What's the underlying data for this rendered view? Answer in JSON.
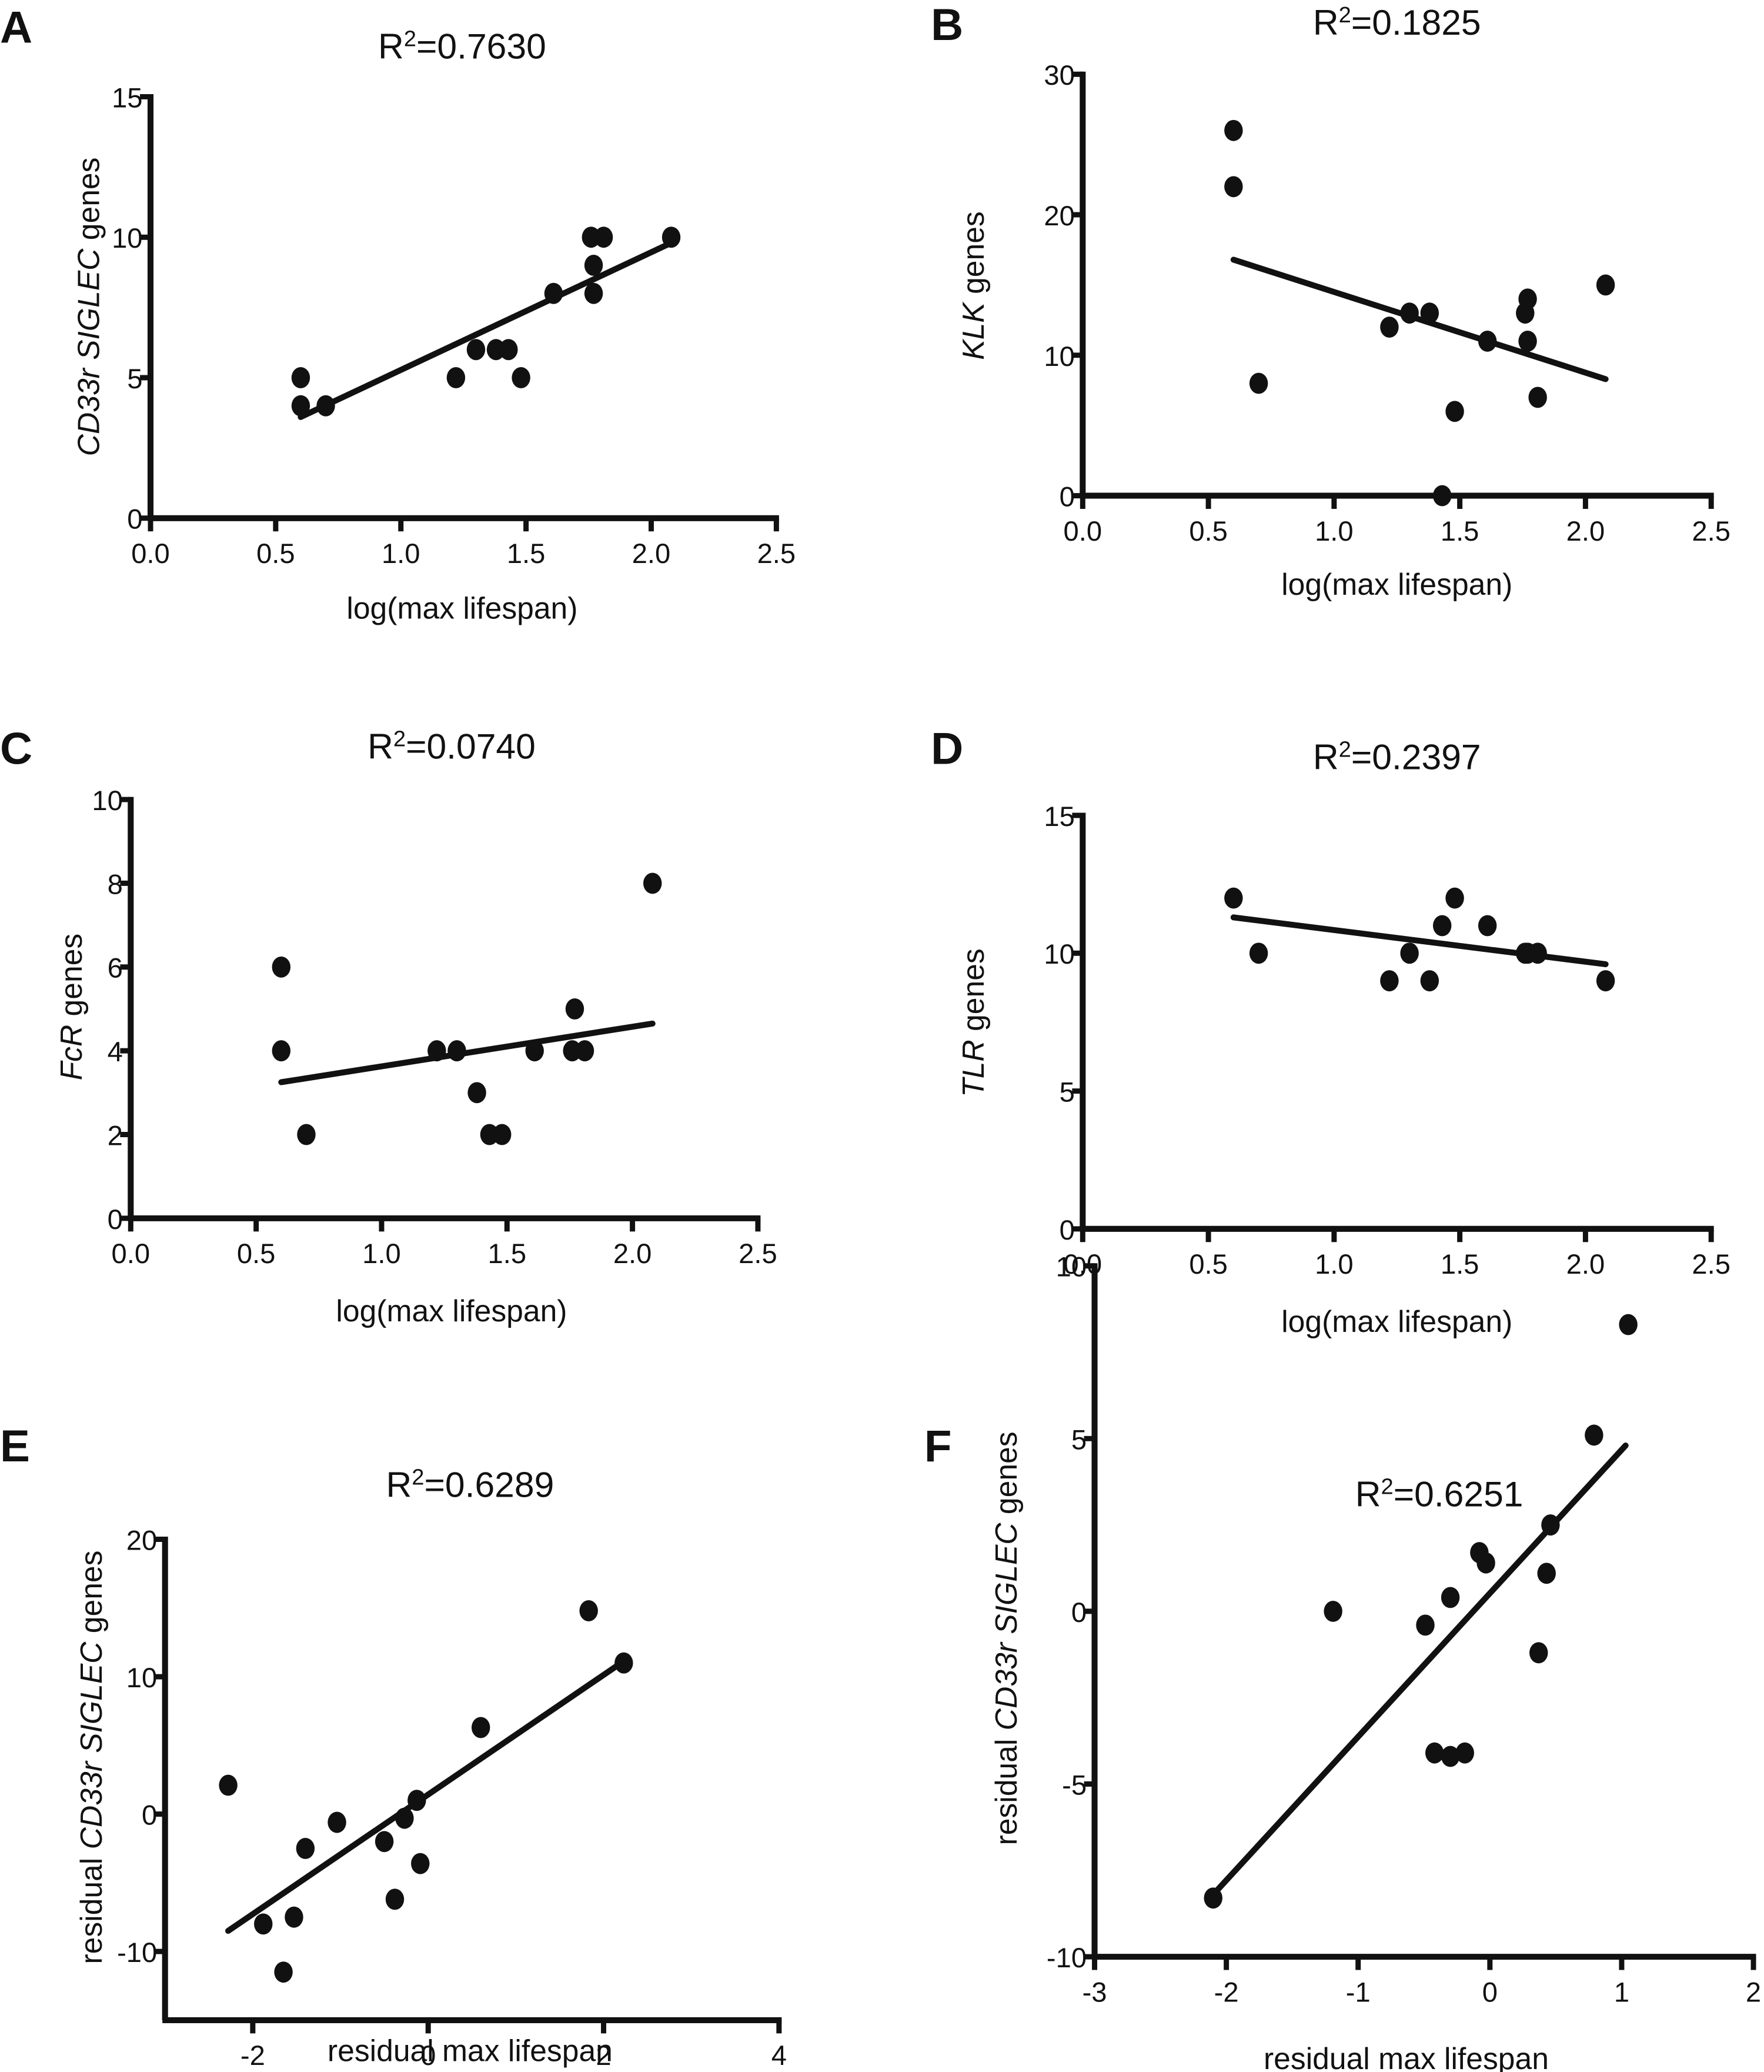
{
  "chart_data": [
    {
      "panel": "A",
      "type": "scatter",
      "title": "R²=0.7630",
      "r_squared": 0.763,
      "xlabel": "log(max lifespan)",
      "ylabel_parts": [
        {
          "text": "CD33r SIGLEC",
          "italic": true
        },
        {
          "text": " genes",
          "italic": false
        }
      ],
      "xlim": [
        0,
        2.5
      ],
      "ylim": [
        0,
        15
      ],
      "xticks": [
        "0.0",
        "0.5",
        "1.0",
        "1.5",
        "2.0",
        "2.5"
      ],
      "xtick_values": [
        0,
        0.5,
        1.0,
        1.5,
        2.0,
        2.5
      ],
      "yticks": [
        "0",
        "5",
        "10",
        "15"
      ],
      "ytick_values": [
        0,
        5,
        10,
        15
      ],
      "points": [
        [
          0.6,
          5
        ],
        [
          0.6,
          4
        ],
        [
          0.7,
          4
        ],
        [
          1.22,
          5
        ],
        [
          1.3,
          6
        ],
        [
          1.38,
          6
        ],
        [
          1.43,
          6
        ],
        [
          1.48,
          5
        ],
        [
          1.61,
          8
        ],
        [
          1.76,
          10
        ],
        [
          1.81,
          10
        ],
        [
          1.77,
          9
        ],
        [
          1.77,
          8
        ],
        [
          2.08,
          10
        ]
      ],
      "fit_line": [
        [
          0.6,
          3.6
        ],
        [
          2.08,
          9.8
        ]
      ]
    },
    {
      "panel": "B",
      "type": "scatter",
      "title": "R²=0.1825",
      "r_squared": 0.1825,
      "xlabel": "log(max lifespan)",
      "ylabel_parts": [
        {
          "text": "KLK",
          "italic": true
        },
        {
          "text": " genes",
          "italic": false
        }
      ],
      "xlim": [
        0,
        2.5
      ],
      "ylim": [
        0,
        30
      ],
      "xticks": [
        "0.0",
        "0.5",
        "1.0",
        "1.5",
        "2.0",
        "2.5"
      ],
      "xtick_values": [
        0,
        0.5,
        1.0,
        1.5,
        2.0,
        2.5
      ],
      "yticks": [
        "0",
        "10",
        "20",
        "30"
      ],
      "ytick_values": [
        0,
        10,
        20,
        30
      ],
      "points": [
        [
          0.6,
          26
        ],
        [
          0.6,
          22
        ],
        [
          0.7,
          8
        ],
        [
          1.22,
          12
        ],
        [
          1.3,
          13
        ],
        [
          1.38,
          13
        ],
        [
          1.43,
          0
        ],
        [
          1.48,
          6
        ],
        [
          1.61,
          11
        ],
        [
          1.76,
          13
        ],
        [
          1.77,
          14
        ],
        [
          1.77,
          11
        ],
        [
          1.81,
          7
        ],
        [
          2.08,
          15
        ]
      ],
      "fit_line": [
        [
          0.6,
          16.8
        ],
        [
          2.08,
          8.3
        ]
      ]
    },
    {
      "panel": "C",
      "type": "scatter",
      "title": "R²=0.0740",
      "r_squared": 0.074,
      "xlabel": "log(max lifespan)",
      "ylabel_parts": [
        {
          "text": "FcR",
          "italic": true
        },
        {
          "text": " genes",
          "italic": false
        }
      ],
      "xlim": [
        0,
        2.5
      ],
      "ylim": [
        0,
        10
      ],
      "xticks": [
        "0.0",
        "0.5",
        "1.0",
        "1.5",
        "2.0",
        "2.5"
      ],
      "xtick_values": [
        0,
        0.5,
        1.0,
        1.5,
        2.0,
        2.5
      ],
      "yticks": [
        "0",
        "2",
        "4",
        "6",
        "8",
        "10"
      ],
      "ytick_values": [
        0,
        2,
        4,
        6,
        8,
        10
      ],
      "points": [
        [
          0.6,
          6
        ],
        [
          0.6,
          4
        ],
        [
          0.7,
          2
        ],
        [
          1.22,
          4
        ],
        [
          1.3,
          4
        ],
        [
          1.38,
          3
        ],
        [
          1.43,
          2
        ],
        [
          1.48,
          2
        ],
        [
          1.61,
          4
        ],
        [
          1.76,
          4
        ],
        [
          1.77,
          5
        ],
        [
          1.81,
          4
        ],
        [
          2.08,
          8
        ]
      ],
      "fit_line": [
        [
          0.6,
          3.25
        ],
        [
          2.08,
          4.65
        ]
      ]
    },
    {
      "panel": "D",
      "type": "scatter",
      "title": "R²=0.2397",
      "r_squared": 0.2397,
      "xlabel": "log(max lifespan)",
      "ylabel_parts": [
        {
          "text": "TLR",
          "italic": true
        },
        {
          "text": " genes",
          "italic": false
        }
      ],
      "xlim": [
        0,
        2.5
      ],
      "ylim": [
        0,
        15
      ],
      "xticks": [
        "0.0",
        "0.5",
        "1.0",
        "1.5",
        "2.0",
        "2.5"
      ],
      "xtick_values": [
        0,
        0.5,
        1.0,
        1.5,
        2.0,
        2.5
      ],
      "yticks": [
        "0",
        "5",
        "10",
        "15"
      ],
      "ytick_values": [
        0,
        5,
        10,
        15
      ],
      "points": [
        [
          0.6,
          12
        ],
        [
          0.7,
          10
        ],
        [
          1.22,
          9
        ],
        [
          1.3,
          10
        ],
        [
          1.38,
          9
        ],
        [
          1.43,
          11
        ],
        [
          1.48,
          12
        ],
        [
          1.61,
          11
        ],
        [
          1.76,
          10
        ],
        [
          1.77,
          10
        ],
        [
          1.81,
          10
        ],
        [
          2.08,
          9
        ]
      ],
      "fit_line": [
        [
          0.6,
          11.3
        ],
        [
          2.08,
          9.6
        ]
      ]
    },
    {
      "panel": "E",
      "type": "scatter",
      "title": "R²=0.6289",
      "r_squared": 0.6289,
      "xlabel": "residual max lifespan",
      "ylabel_parts": [
        {
          "text": "residual ",
          "italic": false
        },
        {
          "text": "CD33r SIGLEC",
          "italic": true
        },
        {
          "text": " genes",
          "italic": false
        }
      ],
      "xlim": [
        -3,
        4
      ],
      "ylim": [
        -15,
        20
      ],
      "xticks": [
        "-2",
        "0",
        "2",
        "4"
      ],
      "xtick_values": [
        -2,
        0,
        2,
        4
      ],
      "yticks": [
        "-10",
        "0",
        "10",
        "20"
      ],
      "ytick_values": [
        -10,
        0,
        10,
        20
      ],
      "points": [
        [
          -2.28,
          2.1
        ],
        [
          -1.88,
          -8.0
        ],
        [
          -1.65,
          -11.5
        ],
        [
          -1.53,
          -7.5
        ],
        [
          -1.4,
          -2.5
        ],
        [
          -1.04,
          -0.6
        ],
        [
          -0.5,
          -2.0
        ],
        [
          -0.38,
          -6.2
        ],
        [
          -0.27,
          -0.3
        ],
        [
          -0.13,
          1.0
        ],
        [
          -0.09,
          -3.6
        ],
        [
          0.6,
          6.3
        ],
        [
          1.83,
          14.8
        ],
        [
          2.23,
          11.0
        ]
      ],
      "fit_line": [
        [
          -2.28,
          -8.5
        ],
        [
          2.2,
          11.0
        ]
      ]
    },
    {
      "panel": "F",
      "type": "scatter",
      "title": "R²=0.6251",
      "r_squared": 0.6251,
      "xlabel": "residual max lifespan",
      "ylabel_parts": [
        {
          "text": "residual ",
          "italic": false
        },
        {
          "text": "CD33r SIGLEC",
          "italic": true
        },
        {
          "text": " genes",
          "italic": false
        }
      ],
      "xlim": [
        -3,
        2
      ],
      "ylim": [
        -10,
        10
      ],
      "xticks": [
        "-3",
        "-2",
        "-1",
        "0",
        "1",
        "2"
      ],
      "xtick_values": [
        -3,
        -2,
        -1,
        0,
        1,
        2
      ],
      "yticks": [
        "-10",
        "-5",
        "0",
        "5",
        "10"
      ],
      "ytick_values": [
        -10,
        -5,
        0,
        5,
        10
      ],
      "points": [
        [
          -2.1,
          -8.3
        ],
        [
          -1.19,
          0.0
        ],
        [
          -0.49,
          -0.4
        ],
        [
          -0.42,
          -4.1
        ],
        [
          -0.3,
          0.4
        ],
        [
          -0.3,
          -4.2
        ],
        [
          -0.19,
          -4.1
        ],
        [
          -0.08,
          1.7
        ],
        [
          -0.03,
          1.4
        ],
        [
          0.37,
          -1.2
        ],
        [
          0.43,
          1.1
        ],
        [
          0.46,
          2.5
        ],
        [
          0.79,
          5.1
        ],
        [
          1.05,
          8.3
        ]
      ],
      "fit_line": [
        [
          -2.1,
          -8.2
        ],
        [
          1.03,
          4.8
        ]
      ]
    }
  ]
}
